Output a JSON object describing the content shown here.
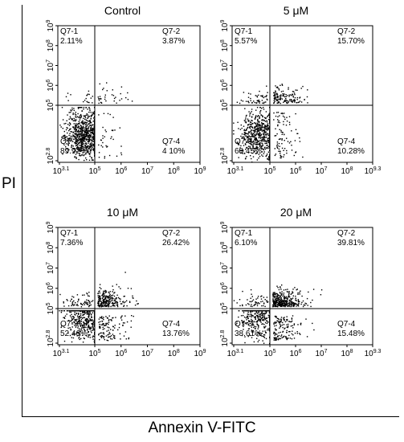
{
  "figure": {
    "ylabel": "PI",
    "xlabel": "Annexin V-FITC"
  },
  "chart_data": [
    {
      "type": "scatter",
      "title": "Control",
      "x_ticks": [
        "10^3.1",
        "10^5",
        "10^6",
        "10^7",
        "10^8",
        "10^9"
      ],
      "y_ticks": [
        "10^2.8",
        "10^5",
        "10^6",
        "10^7",
        "10^8",
        "10^9"
      ],
      "quadrants": [
        {
          "name": "Q7-1",
          "value": "2.11%"
        },
        {
          "name": "Q7-2",
          "value": "3.87%"
        },
        {
          "name": "Q7-3",
          "value": "89.92%"
        },
        {
          "name": "Q7-4",
          "value": "4 10%"
        }
      ]
    },
    {
      "type": "scatter",
      "title": "5 μM",
      "x_ticks": [
        "10^3.1",
        "10^5",
        "10^6",
        "10^7",
        "10^8",
        "10^9.3"
      ],
      "y_ticks": [
        "10^2.8",
        "10^5",
        "10^6",
        "10^7",
        "10^8",
        "10^9"
      ],
      "quadrants": [
        {
          "name": "Q7-1",
          "value": "5.57%"
        },
        {
          "name": "Q7-2",
          "value": "15.70%"
        },
        {
          "name": "Q7-3",
          "value": "68.45%"
        },
        {
          "name": "Q7-4",
          "value": "10.28%"
        }
      ]
    },
    {
      "type": "scatter",
      "title": "10 μM",
      "x_ticks": [
        "10^3.1",
        "10^5",
        "10^6",
        "10^7",
        "10^8",
        "10^9"
      ],
      "y_ticks": [
        "10^2.8",
        "10^5",
        "10^6",
        "10^7",
        "10^8",
        "10^9"
      ],
      "quadrants": [
        {
          "name": "Q7-1",
          "value": "7.36%"
        },
        {
          "name": "Q7-2",
          "value": "26.42%"
        },
        {
          "name": "Q7-3",
          "value": "52.46%"
        },
        {
          "name": "Q7-4",
          "value": "13.76%"
        }
      ]
    },
    {
      "type": "scatter",
      "title": "20 μM",
      "x_ticks": [
        "10^3.1",
        "10^5",
        "10^6",
        "10^7",
        "10^8",
        "10^9.3"
      ],
      "y_ticks": [
        "10^2.8",
        "10^5",
        "10^6",
        "10^7",
        "10^8",
        "10^9"
      ],
      "quadrants": [
        {
          "name": "Q7-1",
          "value": "6.10%"
        },
        {
          "name": "Q7-2",
          "value": "39.81%"
        },
        {
          "name": "Q7-3",
          "value": "38.61%"
        },
        {
          "name": "Q7-4",
          "value": "15.48%"
        }
      ]
    }
  ]
}
